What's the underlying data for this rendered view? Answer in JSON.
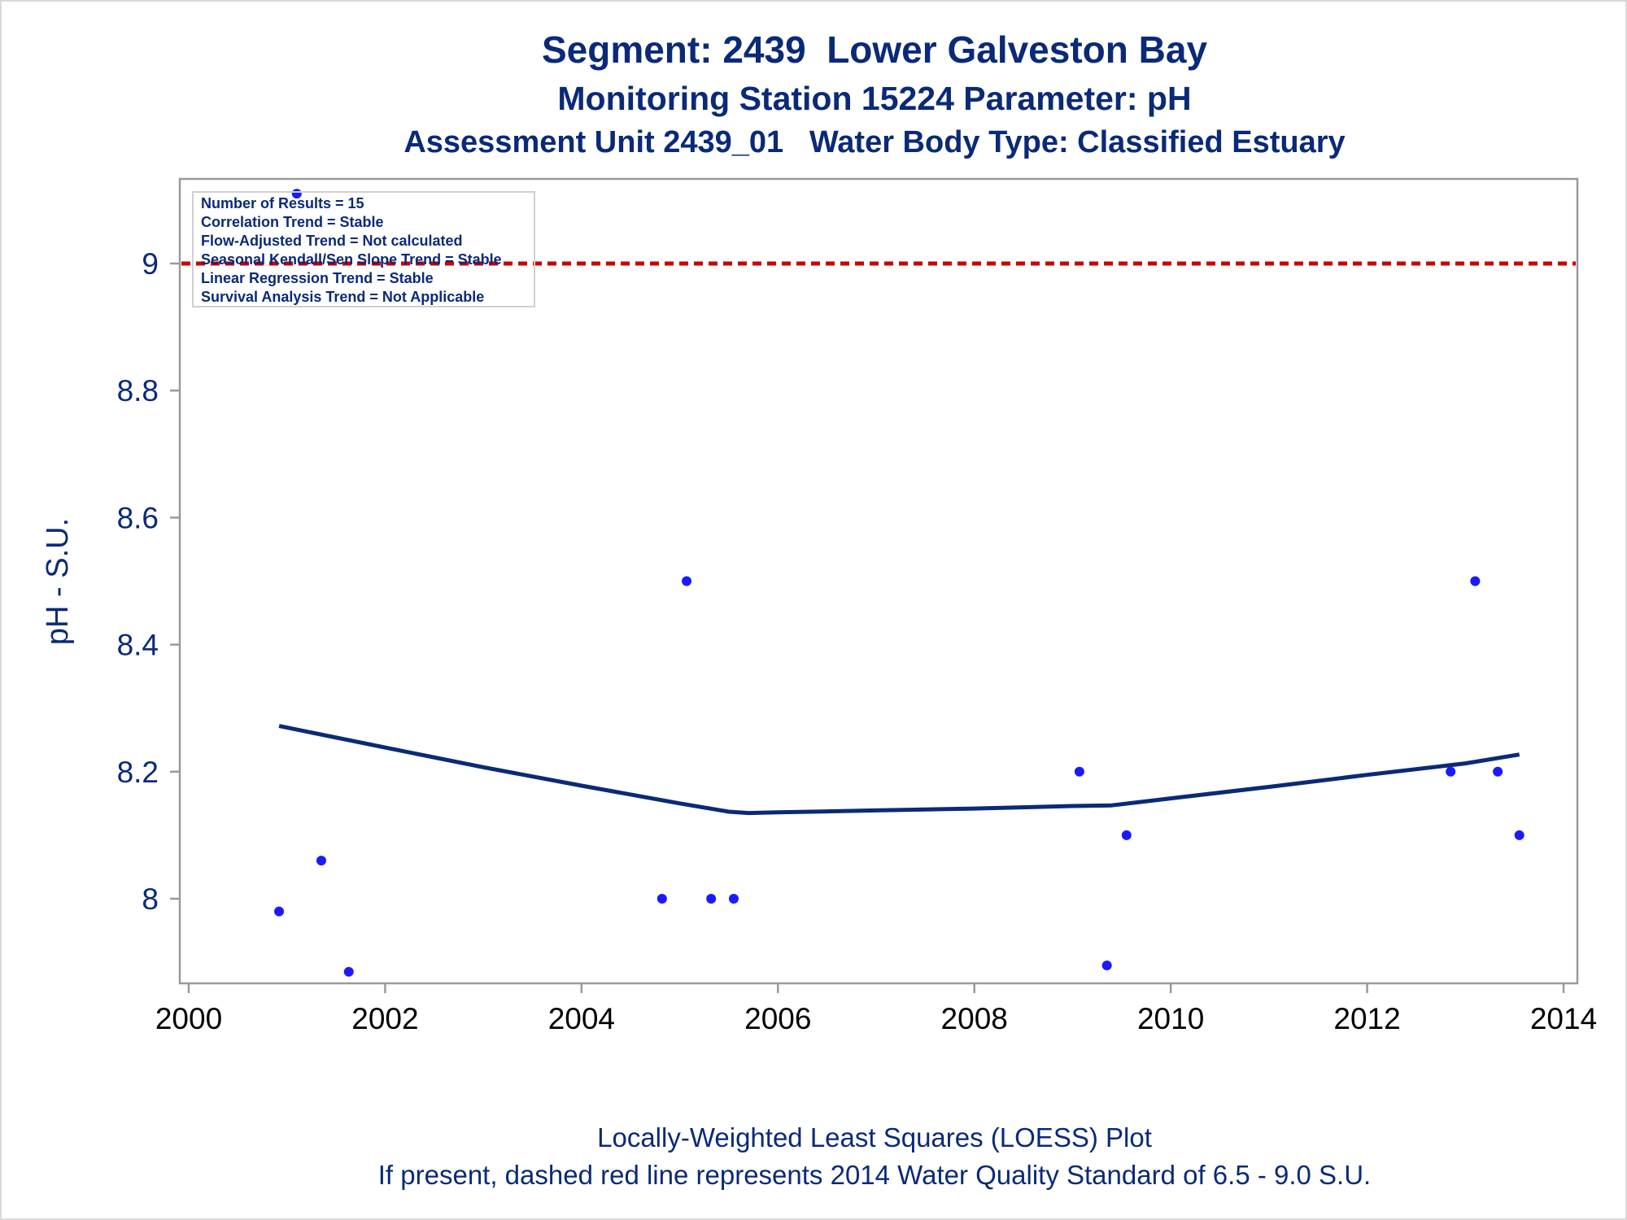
{
  "chart_data": {
    "type": "scatter",
    "title": "Segment: 2439  Lower Galveston Bay",
    "subtitles": [
      "Monitoring Station 15224 Parameter: pH",
      "Assessment Unit 2439_01   Water Body Type: Classified Estuary"
    ],
    "ylabel": "pH - S.U.",
    "xlim": [
      2000,
      2014
    ],
    "ylim": [
      7.88,
      9.13
    ],
    "x_ticks": [
      2000,
      2002,
      2004,
      2006,
      2008,
      2010,
      2012,
      2014
    ],
    "y_ticks": [
      8,
      8.2,
      8.4,
      8.6,
      8.8,
      9
    ],
    "y_tick_labels": [
      "8",
      "8.2",
      "8.4",
      "8.6",
      "8.8",
      "9"
    ],
    "grid": false,
    "series": [
      {
        "type": "scatter",
        "color": "#1a1aff",
        "points": [
          {
            "x": 2000.92,
            "y": 7.98
          },
          {
            "x": 2001.1,
            "y": 9.11
          },
          {
            "x": 2001.35,
            "y": 8.06
          },
          {
            "x": 2001.63,
            "y": 7.885
          },
          {
            "x": 2004.82,
            "y": 8.0
          },
          {
            "x": 2005.07,
            "y": 8.5
          },
          {
            "x": 2005.32,
            "y": 8.0
          },
          {
            "x": 2005.55,
            "y": 8.0
          },
          {
            "x": 2009.07,
            "y": 8.2
          },
          {
            "x": 2009.35,
            "y": 7.895
          },
          {
            "x": 2009.55,
            "y": 8.1
          },
          {
            "x": 2012.85,
            "y": 8.2
          },
          {
            "x": 2013.1,
            "y": 8.5
          },
          {
            "x": 2013.33,
            "y": 8.2
          },
          {
            "x": 2013.55,
            "y": 8.1
          }
        ]
      },
      {
        "type": "line",
        "color": "#0a2a78",
        "points": [
          {
            "x": 2000.92,
            "y": 8.272
          },
          {
            "x": 2002.0,
            "y": 8.238
          },
          {
            "x": 2003.0,
            "y": 8.207
          },
          {
            "x": 2004.0,
            "y": 8.178
          },
          {
            "x": 2005.0,
            "y": 8.15
          },
          {
            "x": 2005.5,
            "y": 8.137
          },
          {
            "x": 2005.7,
            "y": 8.135
          },
          {
            "x": 2006.0,
            "y": 8.136
          },
          {
            "x": 2007.0,
            "y": 8.139
          },
          {
            "x": 2008.0,
            "y": 8.142
          },
          {
            "x": 2009.0,
            "y": 8.146
          },
          {
            "x": 2009.4,
            "y": 8.147
          },
          {
            "x": 2010.0,
            "y": 8.158
          },
          {
            "x": 2011.0,
            "y": 8.176
          },
          {
            "x": 2012.0,
            "y": 8.195
          },
          {
            "x": 2013.0,
            "y": 8.213
          },
          {
            "x": 2013.55,
            "y": 8.227
          }
        ]
      }
    ],
    "reference_line": {
      "y": 9.0,
      "color": "#cc0000",
      "style": "dashed"
    },
    "inset": [
      "Number of Results = 15",
      "Correlation Trend = Stable",
      "Flow-Adjusted Trend = Not calculated",
      "Seasonal Kendall/Sen Slope Trend = Stable",
      "Linear Regression Trend = Stable",
      "Survival Analysis Trend = Not Applicable"
    ],
    "footnotes": [
      "Locally-Weighted Least Squares (LOESS) Plot",
      "If present, dashed red line represents 2014 Water Quality Standard of 6.5 - 9.0 S.U."
    ]
  }
}
